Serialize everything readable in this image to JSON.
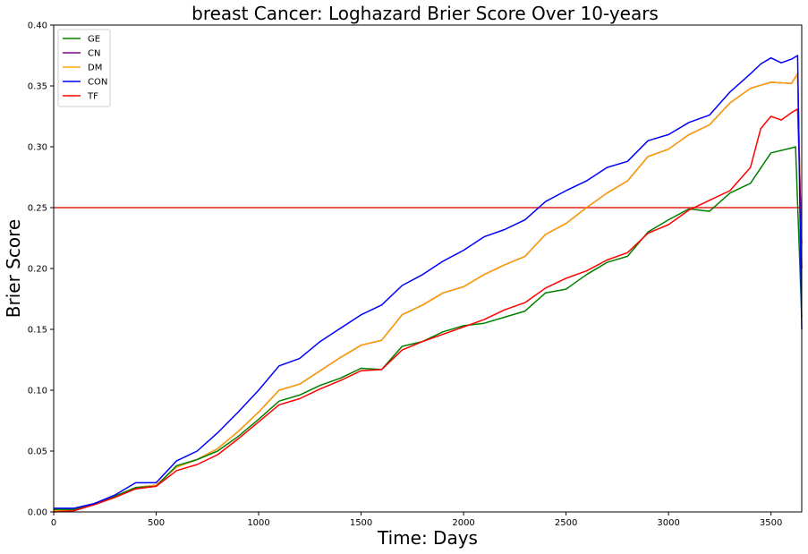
{
  "chart_data": {
    "type": "line",
    "title": "breast Cancer: Loghazard Brier Score Over 10-years",
    "xlabel": "Time: Days",
    "ylabel": "Brier Score",
    "xlim": [
      0,
      3650
    ],
    "ylim": [
      0,
      0.4
    ],
    "xticks": [
      0,
      500,
      1000,
      1500,
      2000,
      2500,
      3000,
      3500
    ],
    "yticks": [
      0.0,
      0.05,
      0.1,
      0.15,
      0.2,
      0.25,
      0.3,
      0.35,
      0.4
    ],
    "ytick_labels": [
      "0.00",
      "0.05",
      "0.10",
      "0.15",
      "0.20",
      "0.25",
      "0.30",
      "0.35",
      "0.40"
    ],
    "xtick_labels": [
      "0",
      "500",
      "1000",
      "1500",
      "2000",
      "2500",
      "3000",
      "3500"
    ],
    "grid": false,
    "legend_position": "top-left",
    "reference_line": {
      "y": 0.25,
      "color": "#e8453c"
    },
    "series": [
      {
        "name": "GE",
        "color": "#008000",
        "x": [
          0,
          100,
          200,
          300,
          400,
          500,
          600,
          700,
          800,
          900,
          1000,
          1100,
          1200,
          1300,
          1400,
          1500,
          1600,
          1700,
          1800,
          1900,
          2000,
          2100,
          2200,
          2300,
          2400,
          2500,
          2600,
          2700,
          2800,
          2900,
          3000,
          3100,
          3200,
          3300,
          3400,
          3500,
          3600,
          3620,
          3650
        ],
        "y": [
          0.002,
          0.002,
          0.007,
          0.013,
          0.02,
          0.021,
          0.038,
          0.043,
          0.05,
          0.062,
          0.076,
          0.091,
          0.096,
          0.104,
          0.11,
          0.118,
          0.117,
          0.136,
          0.14,
          0.148,
          0.153,
          0.155,
          0.16,
          0.165,
          0.18,
          0.183,
          0.195,
          0.205,
          0.21,
          0.23,
          0.24,
          0.249,
          0.247,
          0.262,
          0.27,
          0.295,
          0.299,
          0.3,
          0.16
        ]
      },
      {
        "name": "CN",
        "color": "#800080",
        "x": [
          0,
          100,
          200,
          300,
          400,
          500,
          600,
          700,
          800,
          900,
          1000,
          1100,
          1200,
          1300,
          1400,
          1500,
          1600,
          1700,
          1800,
          1900,
          2000,
          2100,
          2200,
          2300,
          2400,
          2500,
          2600,
          2700,
          2800,
          2900,
          3000,
          3100,
          3200,
          3300,
          3400,
          3500,
          3600,
          3630,
          3650
        ],
        "y": [
          0.001,
          0.002,
          0.007,
          0.013,
          0.02,
          0.022,
          0.037,
          0.043,
          0.052,
          0.066,
          0.082,
          0.1,
          0.105,
          0.116,
          0.127,
          0.137,
          0.141,
          0.162,
          0.17,
          0.18,
          0.185,
          0.195,
          0.203,
          0.21,
          0.228,
          0.237,
          0.25,
          0.262,
          0.272,
          0.292,
          0.298,
          0.31,
          0.318,
          0.336,
          0.348,
          0.353,
          0.352,
          0.36,
          0.2
        ]
      },
      {
        "name": "DM",
        "color": "#FFA500",
        "x": [
          0,
          100,
          200,
          300,
          400,
          500,
          600,
          700,
          800,
          900,
          1000,
          1100,
          1200,
          1300,
          1400,
          1500,
          1600,
          1700,
          1800,
          1900,
          2000,
          2100,
          2200,
          2300,
          2400,
          2500,
          2600,
          2700,
          2800,
          2900,
          3000,
          3100,
          3200,
          3300,
          3400,
          3500,
          3600,
          3630,
          3650
        ],
        "y": [
          0.001,
          0.002,
          0.007,
          0.013,
          0.02,
          0.022,
          0.037,
          0.043,
          0.052,
          0.066,
          0.082,
          0.1,
          0.105,
          0.116,
          0.127,
          0.137,
          0.141,
          0.162,
          0.17,
          0.18,
          0.185,
          0.195,
          0.203,
          0.21,
          0.228,
          0.237,
          0.25,
          0.262,
          0.272,
          0.292,
          0.298,
          0.31,
          0.318,
          0.336,
          0.348,
          0.353,
          0.352,
          0.36,
          0.2
        ]
      },
      {
        "name": "CON",
        "color": "#0000FF",
        "x": [
          0,
          100,
          200,
          300,
          400,
          500,
          600,
          700,
          800,
          900,
          1000,
          1100,
          1200,
          1300,
          1400,
          1500,
          1600,
          1700,
          1800,
          1900,
          2000,
          2100,
          2200,
          2300,
          2400,
          2500,
          2600,
          2700,
          2800,
          2900,
          3000,
          3100,
          3200,
          3300,
          3400,
          3450,
          3500,
          3550,
          3600,
          3630,
          3650
        ],
        "y": [
          0.003,
          0.003,
          0.007,
          0.014,
          0.024,
          0.024,
          0.042,
          0.05,
          0.065,
          0.082,
          0.1,
          0.12,
          0.126,
          0.14,
          0.151,
          0.162,
          0.17,
          0.186,
          0.195,
          0.206,
          0.215,
          0.226,
          0.232,
          0.24,
          0.255,
          0.264,
          0.272,
          0.283,
          0.288,
          0.305,
          0.31,
          0.32,
          0.326,
          0.345,
          0.36,
          0.368,
          0.373,
          0.369,
          0.372,
          0.375,
          0.15
        ]
      },
      {
        "name": "TF",
        "color": "#FF0000",
        "x": [
          0,
          100,
          200,
          300,
          400,
          500,
          600,
          700,
          800,
          900,
          1000,
          1100,
          1200,
          1300,
          1400,
          1500,
          1600,
          1700,
          1800,
          1900,
          2000,
          2100,
          2200,
          2300,
          2400,
          2500,
          2600,
          2700,
          2800,
          2900,
          3000,
          3100,
          3200,
          3300,
          3400,
          3450,
          3500,
          3550,
          3600,
          3630,
          3650
        ],
        "y": [
          0.0,
          0.001,
          0.006,
          0.012,
          0.019,
          0.021,
          0.034,
          0.039,
          0.047,
          0.06,
          0.074,
          0.088,
          0.093,
          0.101,
          0.108,
          0.116,
          0.117,
          0.133,
          0.14,
          0.146,
          0.152,
          0.158,
          0.166,
          0.172,
          0.184,
          0.192,
          0.198,
          0.207,
          0.213,
          0.229,
          0.236,
          0.248,
          0.256,
          0.264,
          0.283,
          0.315,
          0.325,
          0.322,
          0.328,
          0.331,
          0.22
        ]
      }
    ]
  }
}
